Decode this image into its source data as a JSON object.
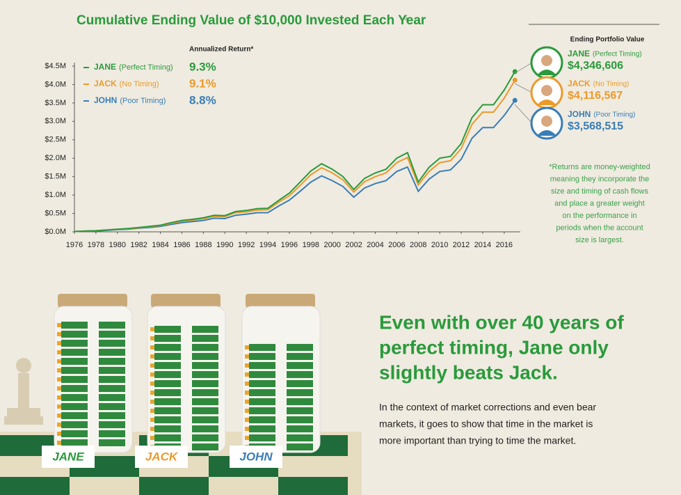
{
  "chart_data": {
    "type": "line",
    "title": "Cumulative Ending Value of $10,000 Invested Each Year",
    "title_note": "5",
    "legend_title": "Annualized Return*",
    "ending_title": "Ending Portfolio Value",
    "x": [
      1976,
      1977,
      1978,
      1979,
      1980,
      1981,
      1982,
      1983,
      1984,
      1985,
      1986,
      1987,
      1988,
      1989,
      1990,
      1991,
      1992,
      1993,
      1994,
      1995,
      1996,
      1997,
      1998,
      1999,
      2000,
      2001,
      2002,
      2003,
      2004,
      2005,
      2006,
      2007,
      2008,
      2009,
      2010,
      2011,
      2012,
      2013,
      2014,
      2015,
      2016,
      2017
    ],
    "xlim": [
      1976,
      2017.5
    ],
    "xticks": [
      1976,
      1978,
      1980,
      1982,
      1984,
      1986,
      1988,
      1990,
      1992,
      1994,
      1996,
      1998,
      2000,
      2002,
      2004,
      2006,
      2008,
      2010,
      2012,
      2014,
      2016
    ],
    "ylim": [
      0,
      4.5
    ],
    "yticks": [
      {
        "value": 0,
        "label": "$0.0M"
      },
      {
        "value": 0.5,
        "label": "$0.5M"
      },
      {
        "value": 1,
        "label": "$1.0M"
      },
      {
        "value": 1.5,
        "label": "$1.5M"
      },
      {
        "value": 2,
        "label": "$2.0M"
      },
      {
        "value": 2.5,
        "label": "$2.5M"
      },
      {
        "value": 3,
        "label": "$3.0M"
      },
      {
        "value": 3.5,
        "label": "$3.5M"
      },
      {
        "value": 4,
        "label": "$4.0M"
      },
      {
        "value": 4.5,
        "label": "$4.5M"
      }
    ],
    "series": [
      {
        "name": "JANE",
        "timing": "(Perfect Timing)",
        "return": "9.3%",
        "ending": "$4,346,606",
        "color": "#2a9a3c",
        "values": [
          0.01,
          0.02,
          0.03,
          0.05,
          0.07,
          0.09,
          0.12,
          0.15,
          0.18,
          0.25,
          0.31,
          0.34,
          0.38,
          0.45,
          0.44,
          0.55,
          0.58,
          0.63,
          0.64,
          0.85,
          1.05,
          1.35,
          1.65,
          1.85,
          1.7,
          1.5,
          1.15,
          1.45,
          1.6,
          1.7,
          2.0,
          2.15,
          1.35,
          1.75,
          2.0,
          2.05,
          2.4,
          3.1,
          3.45,
          3.45,
          3.85,
          4.35
        ]
      },
      {
        "name": "JACK",
        "timing": "(No Timing)",
        "return": "9.1%",
        "ending": "$4,116,567",
        "color": "#eb9a2c",
        "values": [
          0.01,
          0.02,
          0.03,
          0.05,
          0.07,
          0.08,
          0.11,
          0.14,
          0.17,
          0.23,
          0.29,
          0.32,
          0.36,
          0.42,
          0.41,
          0.52,
          0.54,
          0.59,
          0.6,
          0.8,
          0.98,
          1.26,
          1.55,
          1.74,
          1.6,
          1.41,
          1.08,
          1.36,
          1.5,
          1.6,
          1.88,
          2.02,
          1.27,
          1.64,
          1.88,
          1.93,
          2.26,
          2.92,
          3.25,
          3.25,
          3.63,
          4.12
        ]
      },
      {
        "name": "JOHN",
        "timing": "(Poor Timing)",
        "return": "8.8%",
        "ending": "$3,568,515",
        "color": "#3a7db5",
        "values": [
          0.01,
          0.02,
          0.02,
          0.04,
          0.06,
          0.07,
          0.1,
          0.12,
          0.15,
          0.2,
          0.25,
          0.28,
          0.31,
          0.37,
          0.36,
          0.45,
          0.48,
          0.52,
          0.52,
          0.7,
          0.86,
          1.1,
          1.35,
          1.52,
          1.39,
          1.23,
          0.94,
          1.19,
          1.31,
          1.39,
          1.64,
          1.76,
          1.1,
          1.43,
          1.64,
          1.68,
          1.97,
          2.54,
          2.83,
          2.83,
          3.16,
          3.57
        ]
      }
    ],
    "note": [
      "*Returns are money-weighted",
      "meaning they incorporate the",
      "size and timing of cash flows",
      "and place a greater weight",
      "on the performance in",
      "periods when the account",
      "size is largest."
    ]
  },
  "jars": [
    "JANE",
    "JACK",
    "JOHN"
  ],
  "headline": [
    "Even with over 40 years of",
    "perfect timing, Jane only",
    "slightly beats Jack."
  ],
  "body": [
    "In the context of market corrections and even bear",
    "markets, it goes to show that time in the market is",
    "more important than trying to time the market."
  ]
}
